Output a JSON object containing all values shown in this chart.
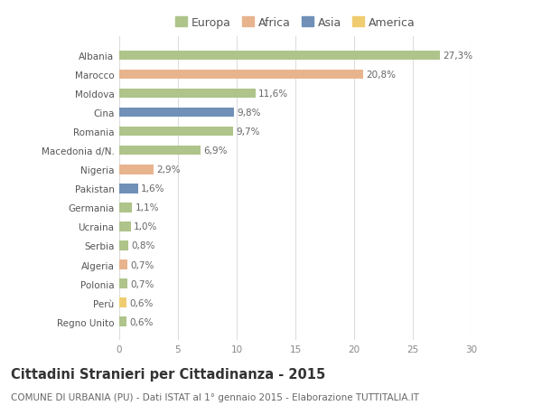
{
  "countries": [
    "Albania",
    "Marocco",
    "Moldova",
    "Cina",
    "Romania",
    "Macedonia d/N.",
    "Nigeria",
    "Pakistan",
    "Germania",
    "Ucraina",
    "Serbia",
    "Algeria",
    "Polonia",
    "Perù",
    "Regno Unito"
  ],
  "values": [
    27.3,
    20.8,
    11.6,
    9.8,
    9.7,
    6.9,
    2.9,
    1.6,
    1.1,
    1.0,
    0.8,
    0.7,
    0.7,
    0.6,
    0.6
  ],
  "labels": [
    "27,3%",
    "20,8%",
    "11,6%",
    "9,8%",
    "9,7%",
    "6,9%",
    "2,9%",
    "1,6%",
    "1,1%",
    "1,0%",
    "0,8%",
    "0,7%",
    "0,7%",
    "0,6%",
    "0,6%"
  ],
  "continents": [
    "Europa",
    "Africa",
    "Europa",
    "Asia",
    "Europa",
    "Europa",
    "Africa",
    "Asia",
    "Europa",
    "Europa",
    "Europa",
    "Africa",
    "Europa",
    "America",
    "Europa"
  ],
  "colors": {
    "Europa": "#aec48a",
    "Africa": "#e8b48e",
    "Asia": "#7090b8",
    "America": "#f0cc70"
  },
  "xlim": [
    0,
    30
  ],
  "xticks": [
    0,
    5,
    10,
    15,
    20,
    25,
    30
  ],
  "title": "Cittadini Stranieri per Cittadinanza - 2015",
  "subtitle": "COMUNE DI URBANIA (PU) - Dati ISTAT al 1° gennaio 2015 - Elaborazione TUTTITALIA.IT",
  "bg_color": "#ffffff",
  "plot_bg_color": "#ffffff",
  "grid_color": "#dddddd",
  "bar_height": 0.5,
  "label_fontsize": 7.5,
  "tick_fontsize": 7.5,
  "title_fontsize": 10.5,
  "subtitle_fontsize": 7.5,
  "legend_labels": [
    "Europa",
    "Africa",
    "Asia",
    "America"
  ]
}
